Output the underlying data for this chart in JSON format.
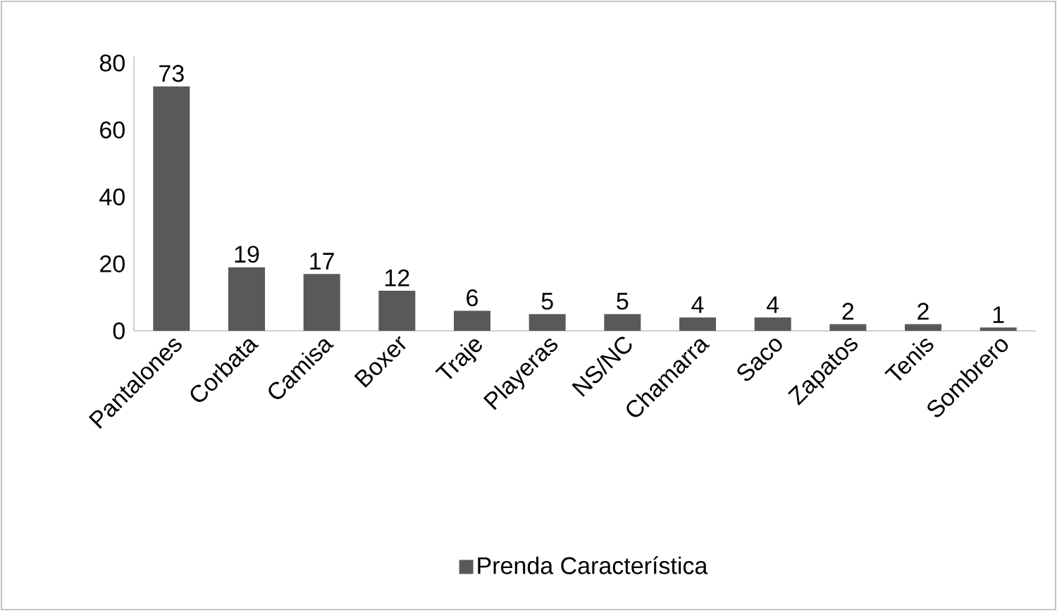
{
  "chart_data": {
    "type": "bar",
    "categories": [
      "Pantalones",
      "Corbata",
      "Camisa",
      "Boxer",
      "Traje",
      "Playeras",
      "NS/NC",
      "Chamarra",
      "Saco",
      "Zapatos",
      "Tenis",
      "Sombrero"
    ],
    "series": [
      {
        "name": "Prenda Característica",
        "color": "#595959",
        "values": [
          73,
          19,
          17,
          12,
          6,
          5,
          5,
          4,
          4,
          2,
          2,
          1
        ]
      }
    ],
    "ylim": [
      0,
      82
    ],
    "yticks": [
      0,
      20,
      40,
      60,
      80
    ],
    "data_labels": true,
    "grid": false,
    "legend": "bottom"
  }
}
